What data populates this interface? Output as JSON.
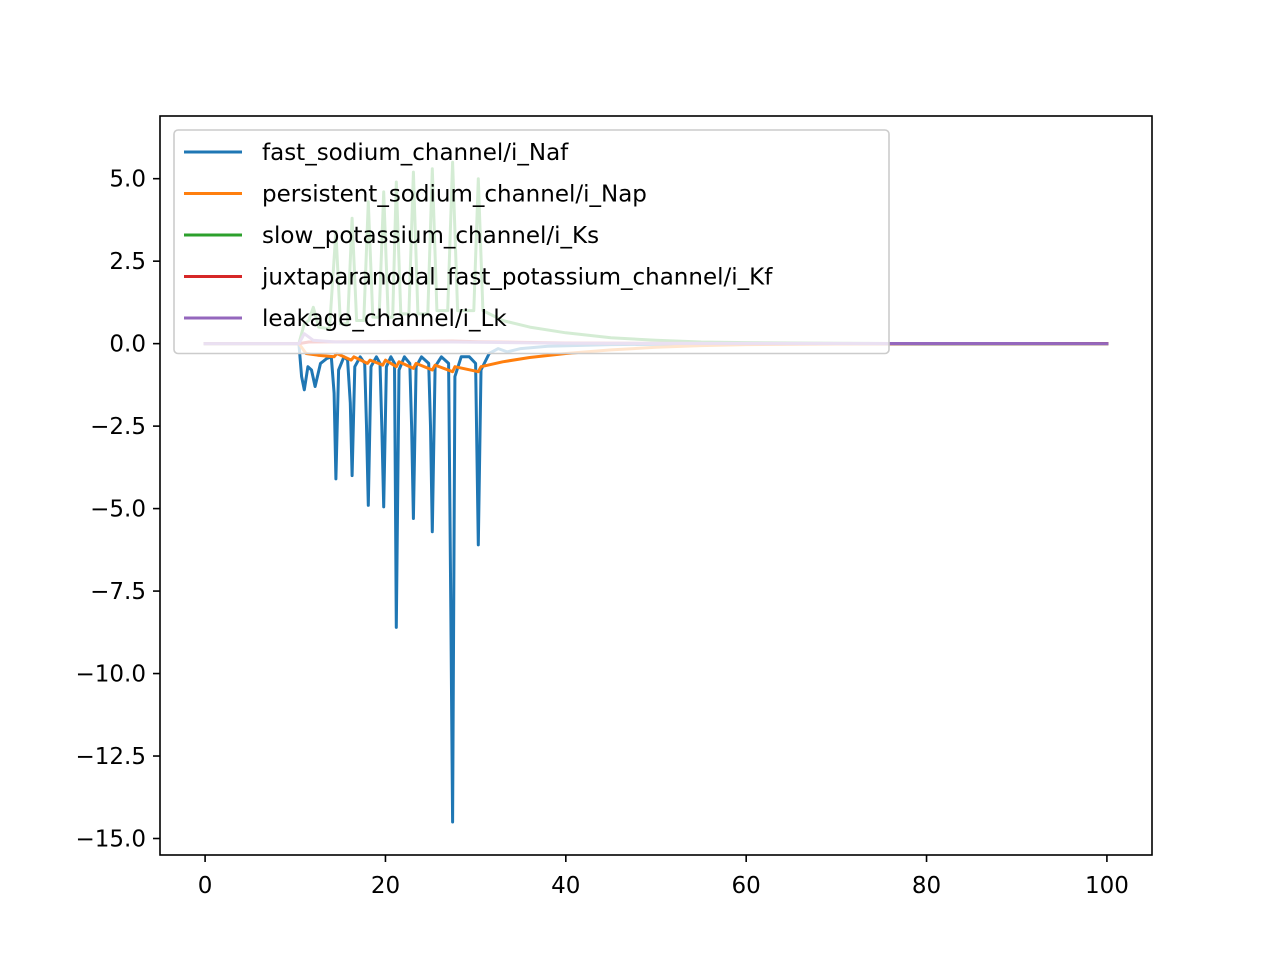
{
  "chart_data": {
    "type": "line",
    "title": "",
    "xlabel": "",
    "ylabel": "",
    "xlim": [
      -5,
      105
    ],
    "ylim": [
      -15.5,
      6.9
    ],
    "x_ticks": [
      0,
      20,
      40,
      60,
      80,
      100
    ],
    "x_tick_labels": [
      "0",
      "20",
      "40",
      "60",
      "80",
      "100"
    ],
    "y_ticks": [
      5.0,
      2.5,
      0.0,
      -2.5,
      -5.0,
      -7.5,
      -10.0,
      -12.5,
      -15.0
    ],
    "y_tick_labels": [
      "5.0",
      "2.5",
      "0.0",
      "−2.5",
      "−5.0",
      "−7.5",
      "−10.0",
      "−12.5",
      "−15.0"
    ],
    "grid": false,
    "legend": "upper left",
    "series": [
      {
        "name": "fast_sodium_channel/i_Naf",
        "color": "#1f77b4",
        "points": [
          [
            0,
            0
          ],
          [
            10.4,
            0
          ],
          [
            10.7,
            -1.0
          ],
          [
            11.0,
            -1.4
          ],
          [
            11.4,
            -0.7
          ],
          [
            11.8,
            -0.8
          ],
          [
            12.2,
            -1.3
          ],
          [
            12.8,
            -0.6
          ],
          [
            13.5,
            -0.45
          ],
          [
            14.0,
            -0.4
          ],
          [
            14.3,
            -1.5
          ],
          [
            14.5,
            -4.1
          ],
          [
            14.8,
            -0.8
          ],
          [
            15.4,
            -0.4
          ],
          [
            15.8,
            -0.5
          ],
          [
            16.1,
            -1.8
          ],
          [
            16.3,
            -4.0
          ],
          [
            16.6,
            -0.7
          ],
          [
            17.2,
            -0.4
          ],
          [
            17.7,
            -0.6
          ],
          [
            17.9,
            -2.5
          ],
          [
            18.1,
            -4.9
          ],
          [
            18.4,
            -0.7
          ],
          [
            19.0,
            -0.4
          ],
          [
            19.4,
            -0.6
          ],
          [
            19.6,
            -2.5
          ],
          [
            19.8,
            -4.95
          ],
          [
            20.1,
            -0.7
          ],
          [
            20.6,
            -0.4
          ],
          [
            21.0,
            -0.6
          ],
          [
            21.1,
            -4.5
          ],
          [
            21.2,
            -8.6
          ],
          [
            21.5,
            -0.8
          ],
          [
            22.1,
            -0.4
          ],
          [
            22.7,
            -0.6
          ],
          [
            22.9,
            -2.5
          ],
          [
            23.1,
            -5.3
          ],
          [
            23.4,
            -0.7
          ],
          [
            24.0,
            -0.4
          ],
          [
            24.8,
            -0.6
          ],
          [
            25.0,
            -2.5
          ],
          [
            25.2,
            -5.7
          ],
          [
            25.5,
            -0.7
          ],
          [
            26.2,
            -0.4
          ],
          [
            27.0,
            -0.6
          ],
          [
            27.25,
            -8.0
          ],
          [
            27.45,
            -14.5
          ],
          [
            27.7,
            -1.0
          ],
          [
            28.4,
            -0.4
          ],
          [
            29.3,
            -0.4
          ],
          [
            30.0,
            -0.6
          ],
          [
            30.3,
            -6.1
          ],
          [
            30.6,
            -0.8
          ],
          [
            31.5,
            -0.3
          ],
          [
            32.5,
            -0.15
          ],
          [
            33.5,
            -0.25
          ],
          [
            35.0,
            -0.15
          ],
          [
            38.0,
            -0.08
          ],
          [
            45.0,
            -0.03
          ],
          [
            55.0,
            -0.01
          ],
          [
            100,
            0
          ]
        ]
      },
      {
        "name": "persistent_sodium_channel/i_Nap",
        "color": "#ff7f0e",
        "points": [
          [
            0,
            0
          ],
          [
            10.4,
            0
          ],
          [
            11.2,
            -0.3
          ],
          [
            12.5,
            -0.35
          ],
          [
            14.3,
            -0.4
          ],
          [
            14.6,
            -0.3
          ],
          [
            16.2,
            -0.5
          ],
          [
            16.5,
            -0.4
          ],
          [
            18.0,
            -0.6
          ],
          [
            18.3,
            -0.5
          ],
          [
            19.7,
            -0.65
          ],
          [
            20.0,
            -0.5
          ],
          [
            21.2,
            -0.7
          ],
          [
            21.5,
            -0.55
          ],
          [
            23.1,
            -0.75
          ],
          [
            23.4,
            -0.6
          ],
          [
            25.2,
            -0.8
          ],
          [
            25.5,
            -0.65
          ],
          [
            27.45,
            -0.85
          ],
          [
            27.7,
            -0.7
          ],
          [
            30.3,
            -0.85
          ],
          [
            30.6,
            -0.7
          ],
          [
            33.0,
            -0.55
          ],
          [
            36.0,
            -0.42
          ],
          [
            40.0,
            -0.3
          ],
          [
            45.0,
            -0.19
          ],
          [
            50.0,
            -0.11
          ],
          [
            55.0,
            -0.06
          ],
          [
            60.0,
            -0.03
          ],
          [
            70.0,
            -0.01
          ],
          [
            80.0,
            0
          ],
          [
            100,
            0
          ]
        ]
      },
      {
        "name": "slow_potassium_channel/i_Ks",
        "color": "#2ca02c",
        "points": [
          [
            0,
            0
          ],
          [
            10.4,
            0
          ],
          [
            11.0,
            0.6
          ],
          [
            11.5,
            0.7
          ],
          [
            12.0,
            1.1
          ],
          [
            12.6,
            0.5
          ],
          [
            13.8,
            0.45
          ],
          [
            14.5,
            3.4
          ],
          [
            15.0,
            0.6
          ],
          [
            15.8,
            0.6
          ],
          [
            16.3,
            3.8
          ],
          [
            16.8,
            0.7
          ],
          [
            17.6,
            0.7
          ],
          [
            18.1,
            4.3
          ],
          [
            18.6,
            0.8
          ],
          [
            19.3,
            0.8
          ],
          [
            19.8,
            4.6
          ],
          [
            20.3,
            0.8
          ],
          [
            20.8,
            0.8
          ],
          [
            21.2,
            4.9
          ],
          [
            21.7,
            0.9
          ],
          [
            22.6,
            0.9
          ],
          [
            23.1,
            5.2
          ],
          [
            23.6,
            0.9
          ],
          [
            24.7,
            0.9
          ],
          [
            25.2,
            5.3
          ],
          [
            25.7,
            1.0
          ],
          [
            26.9,
            1.0
          ],
          [
            27.45,
            5.5
          ],
          [
            28.0,
            1.0
          ],
          [
            29.8,
            1.0
          ],
          [
            30.3,
            5.0
          ],
          [
            30.8,
            1.0
          ],
          [
            33.0,
            0.7
          ],
          [
            36.0,
            0.5
          ],
          [
            40.0,
            0.33
          ],
          [
            45.0,
            0.18
          ],
          [
            50.0,
            0.1
          ],
          [
            55.0,
            0.05
          ],
          [
            60.0,
            0.03
          ],
          [
            70.0,
            0.01
          ],
          [
            80.0,
            0
          ],
          [
            100,
            0
          ]
        ]
      },
      {
        "name": "juxtaparanodal_fast_potassium_channel/i_Kf",
        "color": "#d62728",
        "points": [
          [
            0,
            0
          ],
          [
            10.4,
            0
          ],
          [
            11.5,
            0.05
          ],
          [
            27.45,
            0.08
          ],
          [
            30.3,
            0.06
          ],
          [
            40.0,
            0.02
          ],
          [
            60.0,
            0
          ],
          [
            100,
            0
          ]
        ]
      },
      {
        "name": "leakage_channel/i_Lk",
        "color": "#9467bd",
        "points": [
          [
            0,
            0
          ],
          [
            10.4,
            0
          ],
          [
            11.0,
            0.3
          ],
          [
            12.0,
            0.1
          ],
          [
            14.5,
            0.05
          ],
          [
            27.45,
            0.05
          ],
          [
            30.3,
            0.04
          ],
          [
            40.0,
            0.01
          ],
          [
            100,
            0
          ]
        ]
      }
    ]
  }
}
